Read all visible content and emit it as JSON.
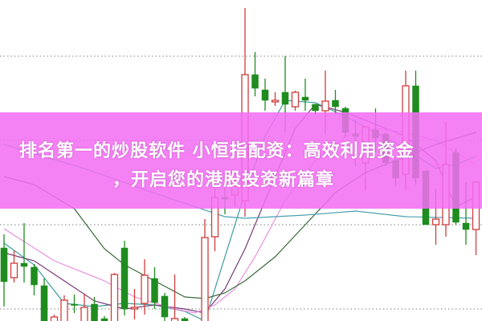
{
  "banner": {
    "title_line1": "排名第一的炒股软件 小恒指配资：高效利用资金",
    "title_line2": "，开启您的港股投资新篇章",
    "background_color": "#f36ef3"
  },
  "chart_data": {
    "type": "candlestick",
    "title": "",
    "xlabel": "",
    "ylabel": "",
    "grid": "horizontal dotted",
    "up_color": "#d03c3c",
    "down_color": "#1e8c1e",
    "gridlines": [
      33,
      22.5,
      12,
      1.5
    ],
    "ylim": [
      0,
      40
    ],
    "candles": [
      {
        "o": 9.1,
        "c": 4.9,
        "h": 10.8,
        "l": 1.8
      },
      {
        "o": 5.4,
        "c": 7.2,
        "h": 8.8,
        "l": 4.8
      },
      {
        "o": 7.2,
        "c": 6.8,
        "h": 12.2,
        "l": 4.8
      },
      {
        "o": 6.7,
        "c": 4.5,
        "h": 7.1,
        "l": 3.2
      },
      {
        "o": 4.4,
        "c": -0.5,
        "h": 5.3,
        "l": -1
      },
      {
        "o": -0.5,
        "c": 0.5,
        "h": 0.8,
        "l": -1
      },
      {
        "o": -0.5,
        "c": 2.6,
        "h": 3.2,
        "l": -1
      },
      {
        "o": 2.1,
        "c": 2.0,
        "h": 3.3,
        "l": 1.0
      },
      {
        "o": -0.5,
        "c": 1.7,
        "h": 3.4,
        "l": -1
      },
      {
        "o": 2.1,
        "c": -0.5,
        "h": 3.0,
        "l": -1
      },
      {
        "o": 0.3,
        "c": -0.3,
        "h": 0.6,
        "l": -1
      },
      {
        "o": -0.5,
        "c": 5.8,
        "h": 6.0,
        "l": -1
      },
      {
        "o": 9.1,
        "c": 1.5,
        "h": 10.0,
        "l": 0.7
      },
      {
        "o": 1.5,
        "c": 1.7,
        "h": 4.0,
        "l": 0.2
      },
      {
        "o": 2.2,
        "c": 5.7,
        "h": 7.7,
        "l": 0.8
      },
      {
        "o": 5.3,
        "c": 2.3,
        "h": 6.7,
        "l": 1.5
      },
      {
        "o": 3.1,
        "c": 0.5,
        "h": 3.5,
        "l": 0
      },
      {
        "o": -0.5,
        "c": 0.3,
        "h": 5.8,
        "l": -1
      },
      {
        "o": 0.3,
        "c": -0.5,
        "h": 0.5,
        "l": -1
      },
      {
        "o": -1,
        "c": -0.5,
        "h": -0.3,
        "l": -2
      },
      {
        "o": -1,
        "c": 10.4,
        "h": 12.7,
        "l": -2
      },
      {
        "o": 10.5,
        "c": 15.4,
        "h": 16.5,
        "l": 8.7
      },
      {
        "o": 15.4,
        "c": 15.2,
        "h": 17.3,
        "l": 13.3
      },
      {
        "o": 15.7,
        "c": 16.8,
        "h": 18.0,
        "l": 14.2
      },
      {
        "o": 15.0,
        "c": 30.7,
        "h": 39.0,
        "l": 13.0
      },
      {
        "o": 30.7,
        "c": 29.0,
        "h": 33.5,
        "l": 28.0
      },
      {
        "o": 28.8,
        "c": 27.5,
        "h": 30.2,
        "l": 26.2
      },
      {
        "o": 27.3,
        "c": 27.5,
        "h": 28.5,
        "l": 26.8
      },
      {
        "o": 28.5,
        "c": 27.0,
        "h": 33.0,
        "l": 23.5
      },
      {
        "o": 26.7,
        "c": 28.5,
        "h": 28.7,
        "l": 26.2
      },
      {
        "o": 27.9,
        "c": 27.5,
        "h": 30.2,
        "l": 26.2
      },
      {
        "o": 27.0,
        "c": 26.2,
        "h": 27.0,
        "l": 25.7
      },
      {
        "o": 26.2,
        "c": 27.4,
        "h": 31.2,
        "l": 23.3
      },
      {
        "o": 27.5,
        "c": 26.7,
        "h": 28.8,
        "l": 25.7
      },
      {
        "o": 26.5,
        "c": 23.5,
        "h": 26.7,
        "l": 23.0
      },
      {
        "o": 23.3,
        "c": 23.0,
        "h": 25.0,
        "l": 19.3
      },
      {
        "o": 19.7,
        "c": 24.2,
        "h": 24.2,
        "l": 16.2
      },
      {
        "o": 23.8,
        "c": 22.8,
        "h": 26.5,
        "l": 21.0
      },
      {
        "o": 23.3,
        "c": 19.7,
        "h": 23.5,
        "l": 19.3
      },
      {
        "o": 20.0,
        "c": 17.8,
        "h": 20.5,
        "l": 16.8
      },
      {
        "o": 18.3,
        "c": 29.3,
        "h": 31.2,
        "l": 16.2
      },
      {
        "o": 29.3,
        "c": 17.8,
        "h": 31.2,
        "l": 17.0
      },
      {
        "o": 18.7,
        "c": 12.0,
        "h": 18.7,
        "l": 12.0
      },
      {
        "o": 12.0,
        "c": 12.7,
        "h": 16.5,
        "l": 9.5
      },
      {
        "o": 12.0,
        "c": 19.5,
        "h": 24.8,
        "l": 10.5
      },
      {
        "o": 21.0,
        "c": 12.3,
        "h": 21.5,
        "l": 12.0
      },
      {
        "o": 12.2,
        "c": 11.4,
        "h": 17.3,
        "l": 9.5
      },
      {
        "o": 11.4,
        "c": 17.3,
        "h": 17.5,
        "l": 8.2
      }
    ],
    "moving_averages": [
      {
        "color": "#3c9c9c",
        "points": [
          [
            0,
            9.7
          ],
          [
            3,
            7.0
          ],
          [
            6,
            2.2
          ],
          [
            9,
            1.8
          ],
          [
            12,
            2.2
          ],
          [
            15,
            2.0
          ],
          [
            18,
            1.2
          ],
          [
            20,
            0
          ],
          [
            22,
            8
          ],
          [
            24,
            16
          ],
          [
            26,
            23
          ],
          [
            28,
            27.5
          ],
          [
            31,
            27.2
          ],
          [
            34,
            25.5
          ],
          [
            37,
            23.5
          ],
          [
            40,
            21.5
          ],
          [
            43,
            19
          ],
          [
            45,
            19.5
          ],
          [
            47,
            20.5
          ]
        ]
      },
      {
        "color": "#7a3a7a",
        "points": [
          [
            0,
            8.5
          ],
          [
            3,
            7.5
          ],
          [
            6,
            5.0
          ],
          [
            9,
            2.5
          ],
          [
            12,
            1.5
          ],
          [
            15,
            2.0
          ],
          [
            18,
            1.5
          ],
          [
            20,
            1.0
          ],
          [
            22,
            4
          ],
          [
            24,
            9
          ],
          [
            27,
            18
          ],
          [
            29,
            24
          ],
          [
            31,
            27
          ],
          [
            34,
            26
          ],
          [
            37,
            24.5
          ],
          [
            40,
            23
          ],
          [
            43,
            20
          ],
          [
            45,
            14.2
          ],
          [
            47,
            15.5
          ]
        ]
      },
      {
        "color": "#e890e0",
        "points": [
          [
            0,
            11.5
          ],
          [
            5,
            7.5
          ],
          [
            10,
            5.0
          ],
          [
            13,
            3.0
          ],
          [
            17,
            1.5
          ],
          [
            19,
            1.0
          ],
          [
            21,
            2.0
          ],
          [
            23,
            4.0
          ],
          [
            25,
            8
          ],
          [
            28,
            15
          ],
          [
            31,
            20
          ],
          [
            34,
            23
          ],
          [
            37,
            24
          ],
          [
            40,
            23.5
          ],
          [
            43,
            22.5
          ],
          [
            47,
            19.5
          ]
        ]
      },
      {
        "color": "#3a6a3a",
        "points": [
          [
            0,
            18
          ],
          [
            3,
            17
          ],
          [
            7,
            14
          ],
          [
            10,
            9
          ],
          [
            12,
            7.0
          ],
          [
            15,
            5.0
          ],
          [
            18,
            3.0
          ],
          [
            20,
            2.8
          ],
          [
            22,
            3.5
          ],
          [
            24,
            5
          ],
          [
            27,
            8
          ],
          [
            30,
            12
          ],
          [
            33,
            16
          ],
          [
            36,
            18.5
          ],
          [
            40,
            20.5
          ],
          [
            43,
            22
          ],
          [
            47,
            23.5
          ]
        ]
      },
      {
        "color": "#4aa0b0",
        "points": [
          [
            0,
            22
          ],
          [
            8,
            19
          ],
          [
            16,
            15.5
          ],
          [
            22,
            13
          ],
          [
            24,
            12.8
          ],
          [
            30,
            13.2
          ],
          [
            35,
            13.7
          ],
          [
            40,
            13.0
          ],
          [
            47,
            12.8
          ]
        ]
      }
    ]
  }
}
